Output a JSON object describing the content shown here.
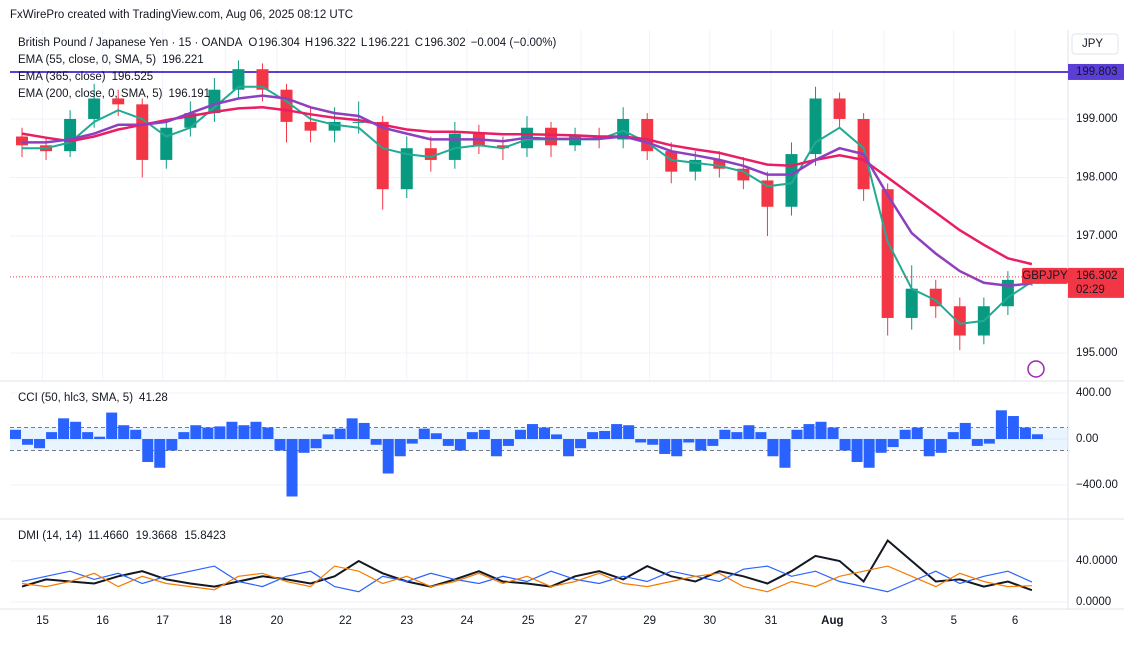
{
  "header": {
    "watermark": "FxWirePro created with TradingView.com, Aug 06, 2025 08:12 UTC"
  },
  "chart_data": [
    {
      "type": "candlestick",
      "title": "British Pound / Japanese Yen · 15 · OANDA",
      "ohlc_legend": [
        {
          "label": "O",
          "value": 196.304
        },
        {
          "label": "H",
          "value": 196.322
        },
        {
          "label": "L",
          "value": 196.221
        },
        {
          "label": "C",
          "value": 196.302
        }
      ],
      "change": "−0.004 (−0.00%)",
      "currency": "JPY",
      "up_color": "#089981",
      "down_color": "#f23645",
      "x": [
        1,
        3,
        5,
        7,
        9,
        11,
        13,
        15,
        17,
        19,
        21,
        23,
        25,
        27,
        29,
        31,
        33,
        35,
        37,
        39,
        41,
        43,
        45,
        47,
        49,
        51,
        53,
        55,
        57,
        59,
        61,
        63,
        65,
        67,
        69,
        71,
        73,
        75,
        77,
        79,
        81,
        83,
        85
      ],
      "open": [
        198.7,
        198.55,
        198.45,
        199.0,
        199.35,
        199.25,
        198.3,
        198.85,
        199.1,
        199.5,
        199.85,
        199.5,
        198.95,
        198.8,
        198.95,
        198.95,
        197.8,
        198.5,
        198.3,
        198.75,
        198.55,
        198.5,
        198.85,
        198.55,
        198.7,
        198.65,
        199.0,
        198.45,
        198.1,
        198.3,
        198.15,
        197.95,
        197.5,
        198.4,
        199.35,
        199.0,
        197.8,
        195.6,
        196.1,
        195.8,
        195.3,
        195.8,
        196.25
      ],
      "high": [
        198.85,
        198.7,
        199.15,
        199.6,
        199.5,
        199.35,
        198.95,
        199.3,
        199.7,
        200.0,
        199.95,
        199.6,
        199.2,
        199.2,
        199.3,
        199.05,
        198.7,
        198.7,
        198.95,
        198.9,
        198.7,
        199.05,
        198.95,
        198.85,
        198.85,
        199.2,
        199.1,
        198.6,
        198.45,
        198.45,
        198.35,
        198.1,
        198.6,
        199.55,
        199.45,
        199.1,
        197.9,
        196.5,
        196.25,
        195.95,
        195.95,
        196.4,
        196.45
      ],
      "low": [
        198.35,
        198.3,
        198.35,
        198.85,
        199.05,
        198.0,
        198.15,
        198.7,
        198.95,
        199.35,
        199.3,
        198.6,
        198.6,
        198.6,
        198.75,
        197.45,
        197.65,
        198.1,
        198.15,
        198.4,
        198.3,
        198.35,
        198.35,
        198.45,
        198.5,
        198.5,
        198.3,
        197.9,
        197.95,
        198.0,
        197.8,
        197.0,
        197.35,
        198.2,
        198.85,
        197.6,
        195.3,
        195.4,
        195.6,
        195.05,
        195.15,
        195.65,
        196.15
      ],
      "close": [
        198.55,
        198.45,
        199.0,
        199.35,
        199.25,
        198.3,
        198.85,
        199.1,
        199.5,
        199.85,
        199.5,
        198.95,
        198.8,
        198.95,
        198.95,
        197.8,
        198.5,
        198.3,
        198.75,
        198.55,
        198.5,
        198.85,
        198.55,
        198.7,
        198.65,
        199.0,
        198.45,
        198.1,
        198.3,
        198.15,
        197.95,
        197.5,
        198.4,
        199.35,
        199.0,
        197.8,
        195.6,
        196.1,
        195.8,
        195.3,
        195.8,
        196.25,
        196.3
      ],
      "series": [
        {
          "name": "EMA (55, close, 0, SMA, 5)",
          "legend_value": 196.221,
          "color": "#22ab94",
          "values": [
            198.5,
            198.5,
            198.6,
            198.95,
            199.15,
            199.0,
            198.7,
            198.85,
            199.2,
            199.55,
            199.55,
            199.3,
            199.0,
            198.9,
            198.85,
            198.5,
            198.4,
            198.35,
            198.5,
            198.55,
            198.5,
            198.65,
            198.65,
            198.65,
            198.65,
            198.8,
            198.6,
            198.3,
            198.25,
            198.2,
            198.1,
            197.85,
            197.9,
            198.6,
            198.85,
            198.5,
            196.9,
            196.1,
            195.9,
            195.5,
            195.55,
            195.95,
            196.22
          ]
        },
        {
          "name": "EMA (365, close)",
          "legend_value": 196.525,
          "color": "#e91e63",
          "values": [
            198.75,
            198.68,
            198.62,
            198.7,
            198.82,
            198.9,
            198.98,
            199.05,
            199.12,
            199.18,
            199.2,
            199.15,
            199.08,
            199.02,
            198.98,
            198.9,
            198.82,
            198.78,
            198.78,
            198.76,
            198.74,
            198.74,
            198.73,
            198.72,
            198.7,
            198.7,
            198.65,
            198.55,
            198.48,
            198.42,
            198.32,
            198.22,
            198.2,
            198.3,
            198.38,
            198.3,
            198.0,
            197.7,
            197.4,
            197.1,
            196.85,
            196.62,
            196.52
          ]
        },
        {
          "name": "EMA (200, close, 0, SMA, 5)",
          "legend_value": 196.191,
          "color": "#8e3fc0",
          "values": [
            198.6,
            198.6,
            198.65,
            198.75,
            198.9,
            198.9,
            198.95,
            199.1,
            199.25,
            199.35,
            199.4,
            199.35,
            199.2,
            199.1,
            199.05,
            198.85,
            198.75,
            198.65,
            198.65,
            198.65,
            198.62,
            198.68,
            198.66,
            198.66,
            198.66,
            198.7,
            198.6,
            198.45,
            198.38,
            198.3,
            198.2,
            198.05,
            198.05,
            198.3,
            198.5,
            198.4,
            197.7,
            197.05,
            196.7,
            196.4,
            196.2,
            196.15,
            196.19
          ]
        }
      ],
      "hline": {
        "value": 199.803,
        "color": "#5b3ed6"
      },
      "last": {
        "symbol": "GBPJPY",
        "value": 196.302,
        "countdown": "02:29",
        "color": "#f23645"
      },
      "xlim": [
        0,
        88
      ],
      "xticks": [
        {
          "value": 2.7,
          "label": "15"
        },
        {
          "value": 7.7,
          "label": "16"
        },
        {
          "value": 12.7,
          "label": "17"
        },
        {
          "value": 17.9,
          "label": "18"
        },
        {
          "value": 22.2,
          "label": "20"
        },
        {
          "value": 27.9,
          "label": "22"
        },
        {
          "value": 33.0,
          "label": "23"
        },
        {
          "value": 38.0,
          "label": "24"
        },
        {
          "value": 43.1,
          "label": "25"
        },
        {
          "value": 47.5,
          "label": "27"
        },
        {
          "value": 53.2,
          "label": "29"
        },
        {
          "value": 58.2,
          "label": "30"
        },
        {
          "value": 63.3,
          "label": "31"
        },
        {
          "value": 68.4,
          "label": "Aug"
        },
        {
          "value": 72.7,
          "label": "3"
        },
        {
          "value": 78.5,
          "label": "5"
        },
        {
          "value": 83.6,
          "label": "6"
        }
      ],
      "ylim": [
        194.54,
        200.52
      ],
      "yticks": [
        {
          "value": 195,
          "label": "195.000"
        },
        {
          "value": 197,
          "label": "197.000"
        },
        {
          "value": 198,
          "label": "198.000"
        },
        {
          "value": 199,
          "label": "199.000"
        }
      ],
      "grid": true
    },
    {
      "type": "bar",
      "title": "CCI (50, hlc3, SMA, 5)",
      "legend_value": 41.28,
      "color": "#2962ff",
      "band": [
        -100,
        100
      ],
      "x": [
        0,
        1,
        2,
        3,
        4,
        5,
        6,
        7,
        8,
        9,
        10,
        11,
        12,
        13,
        14,
        15,
        16,
        17,
        18,
        19,
        20,
        21,
        22,
        23,
        24,
        25,
        26,
        27,
        28,
        29,
        30,
        31,
        32,
        33,
        34,
        35,
        36,
        37,
        38,
        39,
        40,
        41,
        42,
        43,
        44,
        45,
        46,
        47,
        48,
        49,
        50,
        51,
        52,
        53,
        54,
        55,
        56,
        57,
        58,
        59,
        60,
        61,
        62,
        63,
        64,
        65,
        66,
        67,
        68,
        69,
        70,
        71,
        72,
        73,
        74,
        75,
        76,
        77,
        78,
        79,
        80,
        81,
        82,
        83,
        84,
        85
      ],
      "values": [
        80,
        -50,
        -80,
        60,
        180,
        150,
        60,
        20,
        230,
        120,
        80,
        -200,
        -250,
        -100,
        60,
        120,
        100,
        110,
        150,
        120,
        150,
        100,
        -100,
        -500,
        -120,
        -80,
        40,
        90,
        180,
        140,
        -50,
        -300,
        -150,
        -40,
        90,
        50,
        -60,
        -100,
        60,
        80,
        -150,
        -60,
        80,
        130,
        100,
        40,
        -150,
        -80,
        60,
        70,
        130,
        120,
        -30,
        -50,
        -130,
        -150,
        -30,
        -100,
        -60,
        80,
        60,
        120,
        60,
        -150,
        -250,
        80,
        130,
        150,
        100,
        -100,
        -200,
        -250,
        -120,
        -70,
        80,
        100,
        -150,
        -120,
        60,
        140,
        -60,
        -40,
        250,
        200,
        100,
        41.28
      ],
      "xlim": [
        0,
        88
      ],
      "ylim": [
        -687,
        496
      ],
      "yticks": [
        {
          "value": 400,
          "label": "400.00"
        },
        {
          "value": 0,
          "label": "0.00"
        },
        {
          "value": -400,
          "label": "−400.00"
        }
      ],
      "grid": true
    },
    {
      "type": "line",
      "title": "DMI (14, 14)",
      "x": [
        1,
        3,
        5,
        7,
        9,
        11,
        13,
        15,
        17,
        19,
        21,
        23,
        25,
        27,
        29,
        31,
        33,
        35,
        37,
        39,
        41,
        43,
        45,
        47,
        49,
        51,
        53,
        55,
        57,
        59,
        61,
        63,
        65,
        67,
        69,
        71,
        73,
        75,
        77,
        79,
        81,
        83,
        85
      ],
      "series": [
        {
          "legend_value": {
            "value": 11.466,
            "label": "11.4660"
          },
          "color": "#131722",
          "values": [
            15,
            22,
            20,
            18,
            25,
            30,
            22,
            18,
            15,
            20,
            25,
            22,
            18,
            25,
            40,
            28,
            20,
            15,
            22,
            30,
            20,
            18,
            15,
            25,
            30,
            22,
            35,
            25,
            20,
            30,
            25,
            18,
            30,
            45,
            40,
            20,
            60,
            40,
            20,
            22,
            15,
            20,
            11.466
          ]
        },
        {
          "legend_value": 19.3668,
          "color": "#2962ff",
          "values": [
            20,
            25,
            30,
            22,
            28,
            18,
            25,
            30,
            35,
            20,
            15,
            25,
            30,
            15,
            10,
            25,
            20,
            28,
            22,
            18,
            25,
            20,
            30,
            22,
            18,
            25,
            20,
            30,
            25,
            20,
            32,
            35,
            25,
            30,
            20,
            15,
            10,
            20,
            30,
            18,
            25,
            30,
            19.3668
          ]
        },
        {
          "legend_value": 15.8423,
          "color": "#f57c00",
          "values": [
            18,
            15,
            20,
            28,
            15,
            25,
            18,
            15,
            12,
            25,
            28,
            20,
            15,
            35,
            30,
            18,
            25,
            15,
            20,
            28,
            18,
            25,
            15,
            20,
            28,
            18,
            15,
            20,
            25,
            28,
            15,
            10,
            20,
            15,
            25,
            30,
            35,
            25,
            15,
            28,
            20,
            15,
            15.8423
          ]
        }
      ],
      "xlim": [
        0,
        88
      ],
      "ylim": [
        -5.9,
        80
      ],
      "yticks": [
        {
          "value": 40,
          "label": "40.0000"
        },
        {
          "value": 0,
          "label": "0.0000"
        }
      ],
      "grid": true
    }
  ]
}
